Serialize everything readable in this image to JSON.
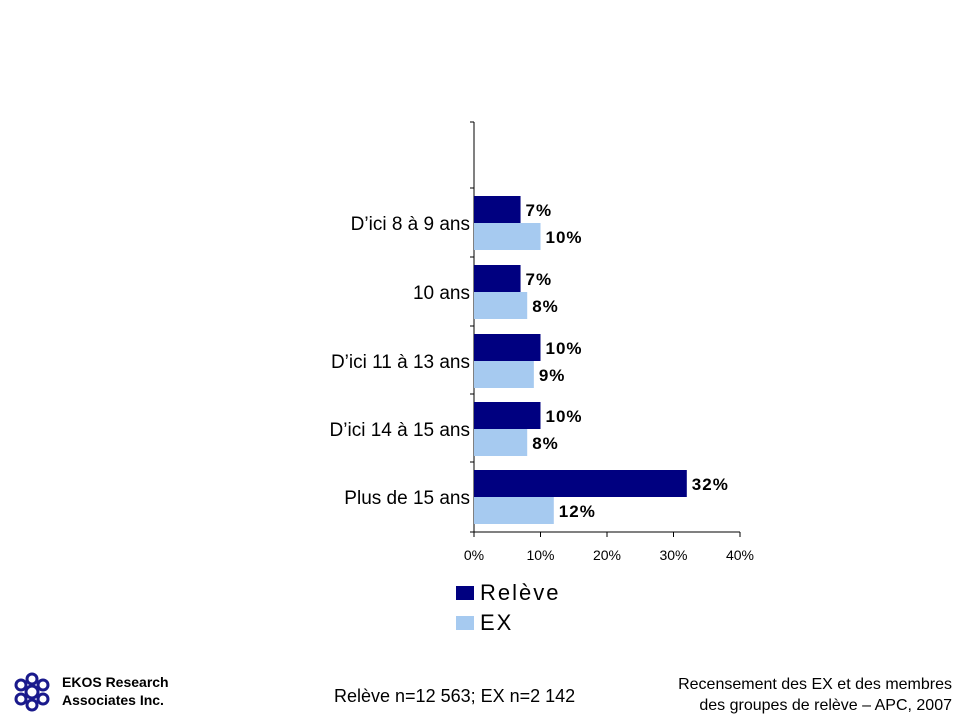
{
  "chart_data": {
    "type": "bar",
    "orientation": "horizontal",
    "categories": [
      "D’ici 8 à 9 ans",
      "10 ans",
      "D’ici 11 à 13 ans",
      "D’ici 14 à 15 ans",
      "Plus de 15 ans"
    ],
    "series": [
      {
        "name": "Relève",
        "color": "#000080",
        "values": [
          7,
          7,
          10,
          10,
          32
        ],
        "labels": [
          "7%",
          "7%",
          "10%",
          "10%",
          "32%"
        ]
      },
      {
        "name": "EX",
        "color": "#a6caf0",
        "values": [
          10,
          8,
          9,
          8,
          12
        ],
        "labels": [
          "10%",
          "8%",
          "9%",
          "8%",
          "12%"
        ]
      }
    ],
    "xlim": [
      0,
      40
    ],
    "xticks": [
      "0%",
      "10%",
      "20%",
      "30%",
      "40%"
    ],
    "grid": false,
    "legend_position": "bottom"
  },
  "footer": {
    "company_line1": "EKOS Research",
    "company_line2": "Associates Inc.",
    "sample": "Relève n=12 563; EX n=2 142",
    "source_line1": "Recensement des EX et des membres",
    "source_line2": "des groupes de relève – APC, 2007"
  }
}
